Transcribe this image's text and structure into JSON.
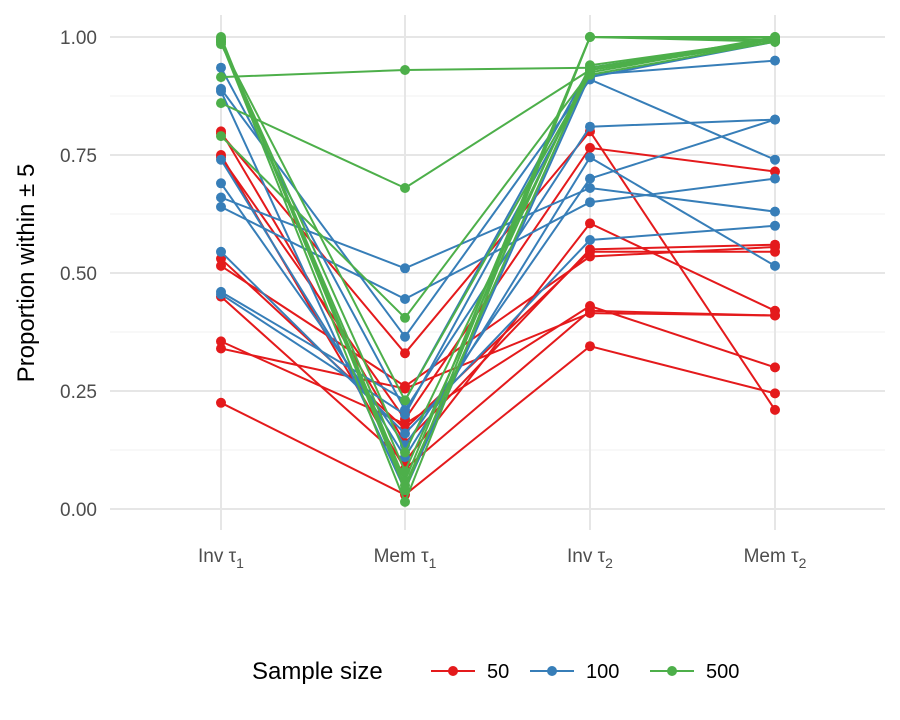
{
  "chart_data": {
    "type": "line",
    "categories": [
      "Inv τ1",
      "Mem τ1",
      "Inv τ2",
      "Mem τ2"
    ],
    "category_labels": [
      {
        "main": "Inv τ",
        "sub": "1"
      },
      {
        "main": "Mem τ",
        "sub": "1"
      },
      {
        "main": "Inv τ",
        "sub": "2"
      },
      {
        "main": "Mem τ",
        "sub": "2"
      }
    ],
    "ylabel": "Proportion within ± 5",
    "ylim": [
      0,
      1
    ],
    "yticks": [
      "0.00",
      "0.25",
      "0.50",
      "0.75",
      "1.00"
    ],
    "grid": true,
    "legend": {
      "title": "Sample size",
      "position": "bottom"
    },
    "groups": [
      {
        "name": "50",
        "color": "#e41a1c",
        "lines": [
          [
            0.8,
            0.14,
            0.55,
            0.56
          ],
          [
            0.745,
            0.19,
            0.765,
            0.715
          ],
          [
            0.53,
            0.17,
            0.545,
            0.545
          ],
          [
            0.515,
            0.26,
            0.535,
            0.555
          ],
          [
            0.45,
            0.1,
            0.605,
            0.42
          ],
          [
            0.355,
            0.18,
            0.43,
            0.3
          ],
          [
            0.34,
            0.255,
            0.415,
            0.41
          ],
          [
            0.225,
            0.03,
            0.345,
            0.245
          ],
          [
            0.795,
            0.33,
            0.8,
            0.21
          ],
          [
            0.75,
            0.085,
            0.42,
            0.41
          ]
        ]
      },
      {
        "name": "100",
        "color": "#377eb8",
        "lines": [
          [
            0.935,
            0.21,
            0.81,
            0.825
          ],
          [
            0.89,
            0.365,
            0.91,
            0.74
          ],
          [
            0.885,
            0.04,
            0.92,
            0.95
          ],
          [
            0.74,
            0.11,
            0.745,
            0.515
          ],
          [
            0.69,
            0.135,
            0.7,
            0.825
          ],
          [
            0.66,
            0.51,
            0.68,
            0.63
          ],
          [
            0.64,
            0.445,
            0.65,
            0.7
          ],
          [
            0.545,
            0.16,
            0.57,
            0.6
          ],
          [
            0.46,
            0.23,
            0.935,
            0.995
          ],
          [
            0.455,
            0.2,
            0.915,
            0.99
          ]
        ]
      },
      {
        "name": "500",
        "color": "#4daf4a",
        "lines": [
          [
            1.0,
            0.04,
            1.0,
            0.99
          ],
          [
            0.99,
            0.015,
            1.0,
            0.995
          ],
          [
            0.995,
            0.06,
            1.0,
            1.0
          ],
          [
            0.915,
            0.93,
            0.935,
            0.995
          ],
          [
            0.86,
            0.68,
            0.93,
            0.99
          ],
          [
            0.79,
            0.405,
            0.925,
            0.995
          ],
          [
            0.985,
            0.23,
            0.92,
            0.99
          ],
          [
            0.99,
            0.08,
            0.94,
            0.995
          ],
          [
            0.995,
            0.05,
            0.93,
            1.0
          ],
          [
            0.99,
            0.12,
            0.93,
            0.995
          ]
        ]
      }
    ]
  }
}
